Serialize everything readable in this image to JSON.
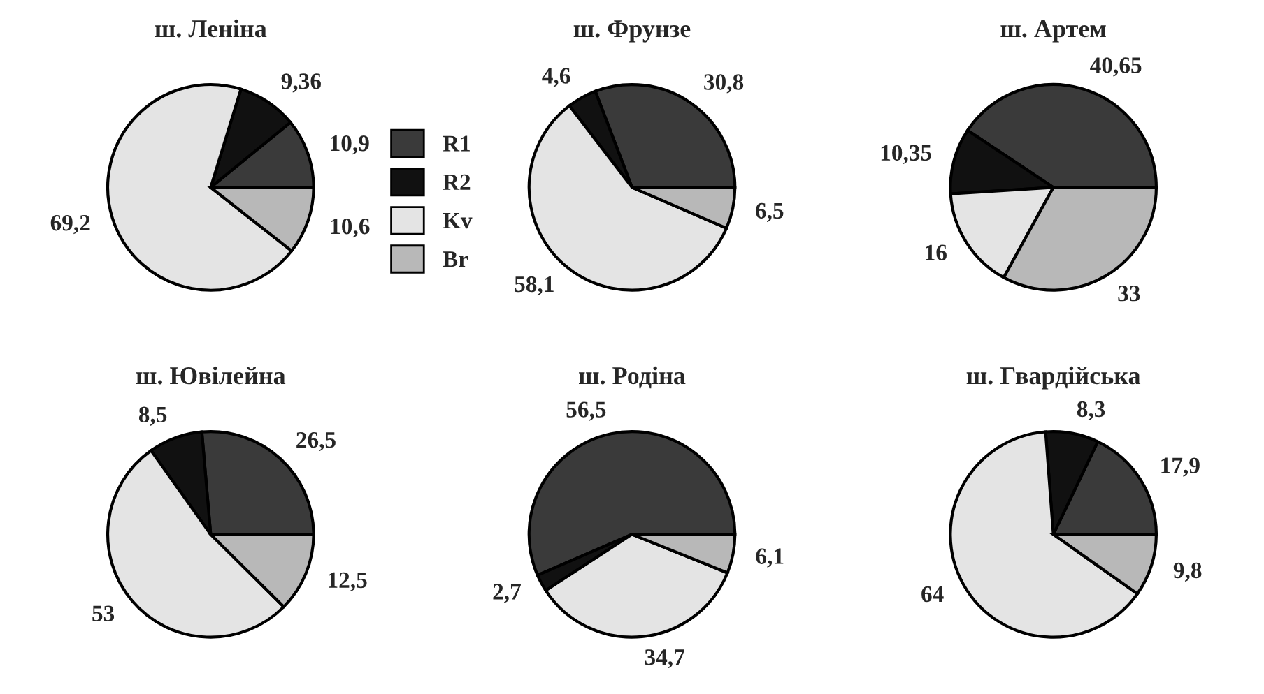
{
  "chart_data": [
    {
      "type": "pie",
      "title": "ш. Леніна",
      "categories": [
        "R1",
        "R2",
        "Kv",
        "Br"
      ],
      "values": [
        10.9,
        9.36,
        69.2,
        10.6
      ],
      "value_labels": [
        "10,9",
        "9,36",
        "69,2",
        "10,6"
      ],
      "colors": [
        "#3a3a3a",
        "#111111",
        "#e4e4e4",
        "#b8b8b8"
      ],
      "legend": "right"
    },
    {
      "type": "pie",
      "title": "ш. Фрунзе",
      "categories": [
        null,
        null,
        null,
        null
      ],
      "values": [
        30.8,
        4.6,
        58.1,
        6.5
      ],
      "value_labels": [
        "30,8",
        "4,6",
        "58,1",
        "6,5"
      ],
      "colors": [
        "#3a3a3a",
        "#111111",
        "#e4e4e4",
        "#b8b8b8"
      ]
    },
    {
      "type": "pie",
      "title": "ш. Артем",
      "categories": [
        null,
        null,
        null,
        null
      ],
      "values": [
        40.65,
        10.35,
        16,
        33
      ],
      "value_labels": [
        "40,65",
        "10,35",
        "16",
        "33"
      ],
      "colors": [
        "#3a3a3a",
        "#111111",
        "#e4e4e4",
        "#b8b8b8"
      ]
    },
    {
      "type": "pie",
      "title": "ш. Ювілейна",
      "categories": [
        null,
        null,
        null,
        null
      ],
      "values": [
        26.5,
        8.5,
        53,
        12.5
      ],
      "value_labels": [
        "26,5",
        "8,5",
        "53",
        "12,5"
      ],
      "colors": [
        "#3a3a3a",
        "#111111",
        "#e4e4e4",
        "#b8b8b8"
      ]
    },
    {
      "type": "pie",
      "title": "ш. Родіна",
      "categories": [
        null,
        null,
        null,
        null
      ],
      "values": [
        56.5,
        2.7,
        34.7,
        6.1
      ],
      "value_labels": [
        "56,5",
        "2,7",
        "34,7",
        "6,1"
      ],
      "colors": [
        "#3a3a3a",
        "#111111",
        "#e4e4e4",
        "#b8b8b8"
      ]
    },
    {
      "type": "pie",
      "title": "ш. Гвардійська",
      "categories": [
        null,
        null,
        null,
        null
      ],
      "values": [
        17.9,
        8.3,
        64,
        9.8
      ],
      "value_labels": [
        "17,9",
        "8,3",
        "64",
        "9,8"
      ],
      "colors": [
        "#3a3a3a",
        "#111111",
        "#e4e4e4",
        "#b8b8b8"
      ]
    }
  ]
}
